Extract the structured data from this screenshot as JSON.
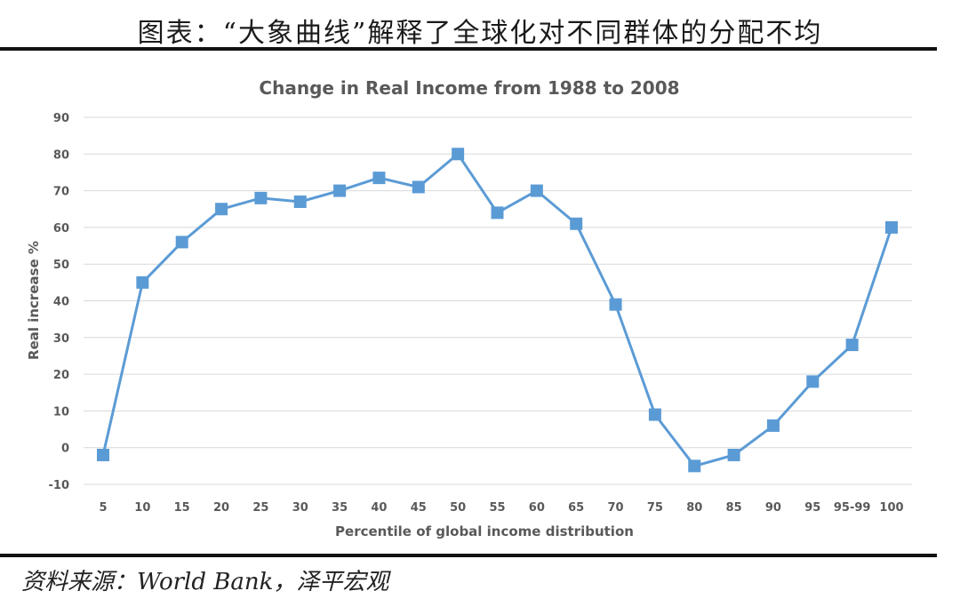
{
  "figure": {
    "title": "图表：“大象曲线”解释了全球化对不同群体的分配不均",
    "source": "资料来源：World Bank，泽平宏观"
  },
  "chart_data": {
    "type": "line",
    "title": "Change in Real Income from 1988 to 2008",
    "xlabel": "Percentile of global income distribution",
    "ylabel": "Real increase %",
    "categories": [
      "5",
      "10",
      "15",
      "20",
      "25",
      "30",
      "35",
      "40",
      "45",
      "50",
      "55",
      "60",
      "65",
      "70",
      "75",
      "80",
      "85",
      "90",
      "95",
      "95-99",
      "100"
    ],
    "series": [
      {
        "values": [
          -2,
          45,
          56,
          65,
          68,
          67,
          70,
          73.5,
          71,
          80,
          64,
          70,
          61,
          39,
          9,
          -5,
          -2,
          6,
          18,
          28,
          60
        ]
      }
    ],
    "yticks": [
      90,
      80,
      70,
      60,
      50,
      40,
      30,
      20,
      10,
      0,
      -10
    ],
    "ylim": [
      -10,
      90
    ],
    "grid": true,
    "legend": "none",
    "color": "#5b9bd5"
  }
}
